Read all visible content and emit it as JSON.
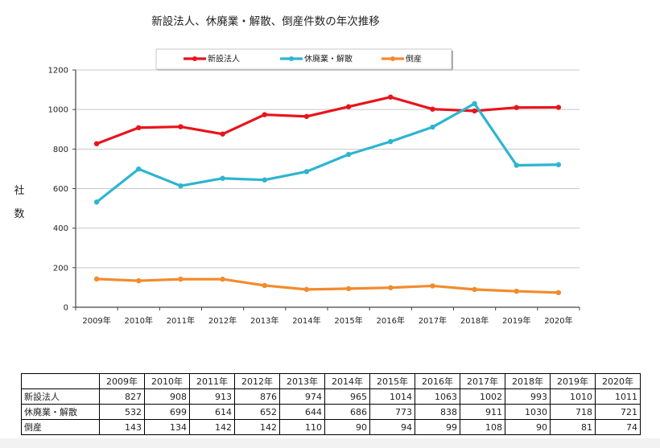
{
  "chart_data": {
    "type": "line",
    "title": "新設法人、休廃業・解散、倒産件数の年次推移",
    "ylabel": "社数",
    "categories": [
      "2009年",
      "2010年",
      "2011年",
      "2012年",
      "2013年",
      "2014年",
      "2015年",
      "2016年",
      "2017年",
      "2018年",
      "2019年",
      "2020年"
    ],
    "ylim": [
      0,
      1200
    ],
    "yticks": [
      0,
      200,
      400,
      600,
      800,
      1000,
      1200
    ],
    "grid": true,
    "legend_position": "top",
    "series": [
      {
        "name": "新設法人",
        "color": "#e8141c",
        "values": [
          827,
          908,
          913,
          876,
          974,
          965,
          1014,
          1063,
          1002,
          993,
          1010,
          1011
        ]
      },
      {
        "name": "休廃業・解散",
        "color": "#2db5d0",
        "values": [
          532,
          699,
          614,
          652,
          644,
          686,
          773,
          838,
          911,
          1030,
          718,
          721
        ]
      },
      {
        "name": "倒産",
        "color": "#f28b2c",
        "values": [
          143,
          134,
          142,
          142,
          110,
          90,
          94,
          99,
          108,
          90,
          81,
          74
        ]
      }
    ]
  },
  "table": {
    "years": [
      "2009年",
      "2010年",
      "2011年",
      "2012年",
      "2013年",
      "2014年",
      "2015年",
      "2016年",
      "2017年",
      "2018年",
      "2019年",
      "2020年"
    ],
    "rows": [
      {
        "label": "新設法人",
        "values": [
          "827",
          "908",
          "913",
          "876",
          "974",
          "965",
          "1014",
          "1063",
          "1002",
          "993",
          "1010",
          "1011"
        ]
      },
      {
        "label": "休廃業・解散",
        "values": [
          "532",
          "699",
          "614",
          "652",
          "644",
          "686",
          "773",
          "838",
          "911",
          "1030",
          "718",
          "721"
        ]
      },
      {
        "label": "倒産",
        "values": [
          "143",
          "134",
          "142",
          "142",
          "110",
          "90",
          "94",
          "99",
          "108",
          "90",
          "81",
          "74"
        ]
      }
    ]
  }
}
